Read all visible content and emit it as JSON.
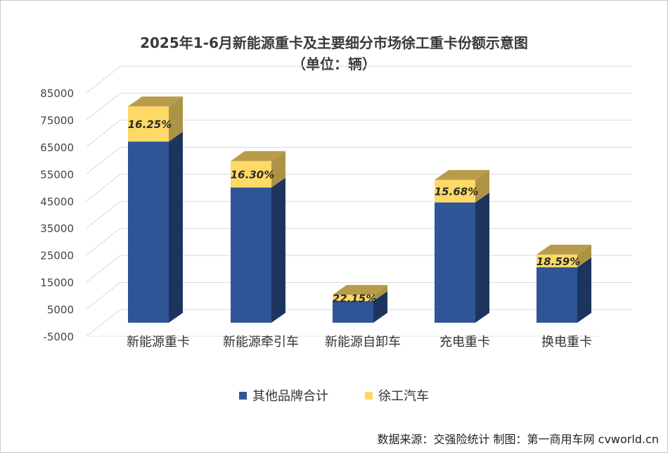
{
  "chart_data": {
    "type": "bar",
    "stacked": true,
    "three_d": true,
    "title": "2025年1-6月新能源重卡及主要细分市场徐工重卡份额示意图",
    "subtitle": "（单位：辆）",
    "categories": [
      "新能源重卡",
      "新能源牵引车",
      "新能源自卸车",
      "充电重卡",
      "换电重卡"
    ],
    "series": [
      {
        "name": "其他品牌合计",
        "color": "#2f5597",
        "values": [
          67000,
          50000,
          8000,
          44500,
          20500
        ]
      },
      {
        "name": "徐工汽车",
        "color": "#ffd966",
        "values": [
          13000,
          9800,
          2300,
          8300,
          4700
        ],
        "labels": [
          "16.25%",
          "16.30%",
          "22.15%",
          "15.68%",
          "18.59%"
        ]
      }
    ],
    "yticks": [
      "85000",
      "75000",
      "65000",
      "55000",
      "45000",
      "35000",
      "25000",
      "15000",
      "5000",
      "-5000"
    ],
    "ylim": [
      -5000,
      85000
    ],
    "grid": true,
    "legend_position": "bottom"
  },
  "source_text": "数据来源：交强险统计  制图：第一商用车网 cvworld.cn"
}
